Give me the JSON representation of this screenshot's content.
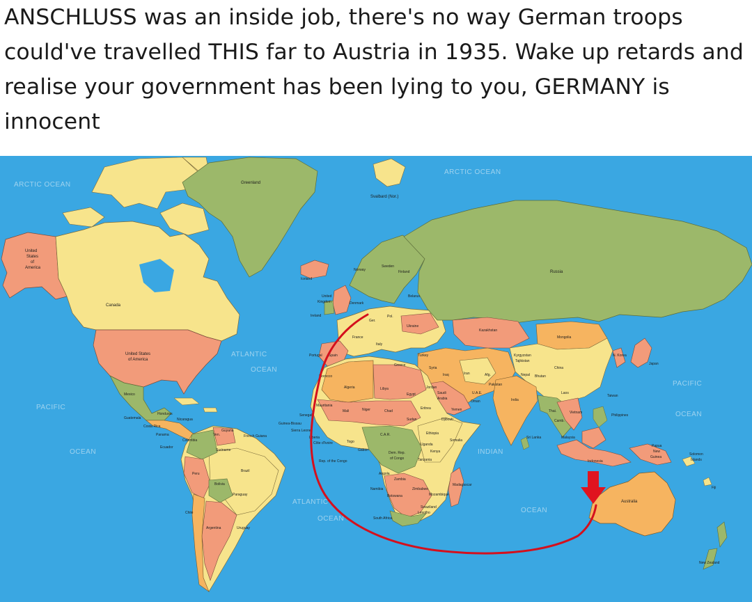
{
  "post": {
    "caption": "ANSCHLUSS was an inside job, there's no way German troops could've travelled THIS far to Austria in 1935. Wake up retards and realise your government has been lying to you, GERMANY is innocent"
  },
  "map": {
    "colors": {
      "ocean": "#3aa7e2",
      "green": "#9cb86a",
      "yellow": "#f7e48c",
      "salmon": "#f29b7a",
      "orange": "#f6b460",
      "route": "#d4101d"
    },
    "oceans": {
      "arctic_left": "ARCTIC OCEAN",
      "arctic_top": "ARCTIC OCEAN",
      "atlantic_north_1": "ATLANTIC",
      "atlantic_north_2": "OCEAN",
      "atlantic_south_1": "ATLANTIC",
      "atlantic_south_2": "OCEAN",
      "pacific_left_1": "PACIFIC",
      "pacific_left_2": "OCEAN",
      "pacific_right_1": "PACIFIC",
      "pacific_right_2": "OCEAN",
      "indian_1": "INDIAN",
      "indian_2": "OCEAN"
    },
    "countries": {
      "greenland": "Greenland",
      "svalbard": "Svalbard (Nor.)",
      "alaska_1": "United",
      "alaska_2": "States",
      "alaska_3": "of",
      "alaska_4": "America",
      "canada": "Canada",
      "usa_1": "United States",
      "usa_2": "of America",
      "mexico": "Mexico",
      "guatemala": "Guatemala",
      "honduras": "Honduras",
      "nicaragua": "Nicaragua",
      "costa_rica": "Costa Rica",
      "panama": "Panama",
      "colombia": "Colombia",
      "venezuela": "Ven.",
      "guyana": "Guyana",
      "french_guiana": "French Guiana",
      "suriname": "Suriname",
      "ecuador": "Ecuador",
      "peru": "Peru",
      "brazil": "Brazil",
      "bolivia": "Bolivia",
      "paraguay": "Paraguay",
      "chile": "Chile",
      "argentina": "Argentina",
      "uruguay": "Uruguay",
      "iceland": "Iceland",
      "norway": "Norway",
      "sweden": "Sweden",
      "finland": "Finland",
      "uk_1": "United",
      "uk_2": "Kingdom",
      "ireland": "Ireland",
      "denmark": "Denmark",
      "belarus": "Belarus",
      "germany": "Ger.",
      "poland": "Pol.",
      "ukraine": "Ukraine",
      "portugal": "Portugal",
      "spain": "Spain",
      "france": "France",
      "italy": "Italy",
      "greece": "Greece",
      "turkey": "Turkey",
      "russia": "Russia",
      "kazakhstan": "Kazakhstan",
      "mongolia": "Mongolia",
      "kyrgyzstan": "Kyrgyzstan",
      "tajikistan": "Tajikistan",
      "china": "China",
      "korea": "N. Korea",
      "japan": "Japan",
      "syria": "Syria",
      "iraq": "Iraq",
      "iran": "Iran",
      "afghanistan": "Afg.",
      "pakistan": "Pakistan",
      "nepal": "Nepal",
      "bhutan": "Bhutan",
      "india": "India",
      "jordan": "Jordan",
      "saudi_1": "Saudi",
      "saudi_2": "Arabia",
      "oman": "Oman",
      "uae": "U.A.E.",
      "yemen": "Yemen",
      "laos": "Laos",
      "thailand": "Thai.",
      "vietnam": "Vietnam",
      "taiwan": "Taiwan",
      "philippines": "Philippines",
      "cambodia": "Camb.",
      "malaysia": "Malaysia",
      "indonesia": "Indonesia",
      "sri_lanka": "Sri Lanka",
      "png_1": "Papua",
      "png_2": "New",
      "png_3": "Guinea",
      "solomon_1": "Solomon",
      "solomon_2": "Islands",
      "fiji": "Fiji",
      "morocco": "Morocco",
      "algeria": "Algeria",
      "libya": "Libya",
      "egypt": "Egypt",
      "mauritania": "Mauritania",
      "mali": "Mali",
      "niger": "Niger",
      "chad": "Chad",
      "sudan": "Sudan",
      "eritrea": "Eritrea",
      "djibouti": "Djibouti",
      "ethiopia": "Ethiopia",
      "somalia": "Somalia",
      "senegal": "Senegal",
      "guinea_bissau": "Guinea-Bissau",
      "sierra_leone": "Sierra Leone",
      "liberia": "Liberia",
      "cote_divoire": "Côte d'Ivoire",
      "togo": "Togo",
      "car": "C.A.R.",
      "gabon": "Gabon",
      "rep_congo": "Rep. of the Congo",
      "drc_1": "Dem. Rep.",
      "drc_2": "of Congo",
      "uganda": "Uganda",
      "kenya": "Kenya",
      "tanzania": "Tanzania",
      "angola": "Angola",
      "zambia": "Zambia",
      "namibia": "Namibia",
      "zimbabwe": "Zimbabwe",
      "botswana": "Botswana",
      "mozambique": "Mozambique",
      "madagascar": "Madagascar",
      "swaziland": "Swaziland",
      "lesotho": "Lesotho",
      "south_africa": "South Africa",
      "australia": "Australia",
      "new_zealand": "New Zealand"
    }
  }
}
